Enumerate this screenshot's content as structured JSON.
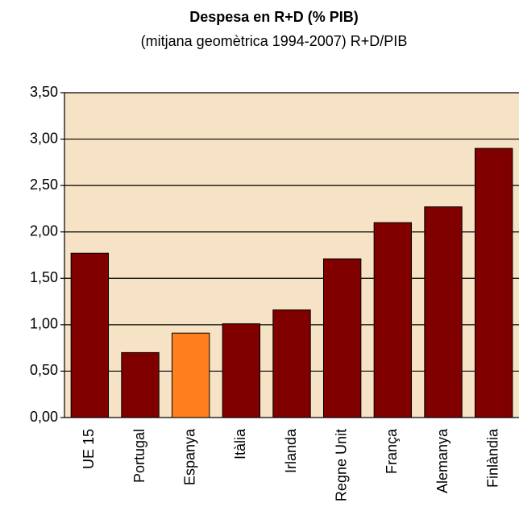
{
  "chart_data": {
    "type": "bar",
    "title": "Despesa en R+D (% PIB)",
    "subtitle": "(mitjana geomètrica 1994-2007) R+D/PIB",
    "categories": [
      "UE 15",
      "Portugal",
      "Espanya",
      "Itàlia",
      "Irlanda",
      "Regne Unit",
      "França",
      "Alemanya",
      "Finlàndia"
    ],
    "values": [
      1.77,
      0.7,
      0.91,
      1.01,
      1.16,
      1.71,
      2.1,
      2.27,
      2.9
    ],
    "colors": [
      "#800000",
      "#800000",
      "#ff7f1f",
      "#800000",
      "#800000",
      "#800000",
      "#800000",
      "#800000",
      "#800000"
    ],
    "ylim": [
      0,
      3.5
    ],
    "yticks": [
      {
        "value": 0,
        "label": "0,00"
      },
      {
        "value": 0.5,
        "label": "0,50"
      },
      {
        "value": 1,
        "label": "1,00"
      },
      {
        "value": 1.5,
        "label": "1,50"
      },
      {
        "value": 2,
        "label": "2,00"
      },
      {
        "value": 2.5,
        "label": "2,50"
      },
      {
        "value": 3,
        "label": "3,00"
      },
      {
        "value": 3.5,
        "label": "3,50"
      }
    ],
    "grid": true,
    "background": "#f6e3c5"
  }
}
